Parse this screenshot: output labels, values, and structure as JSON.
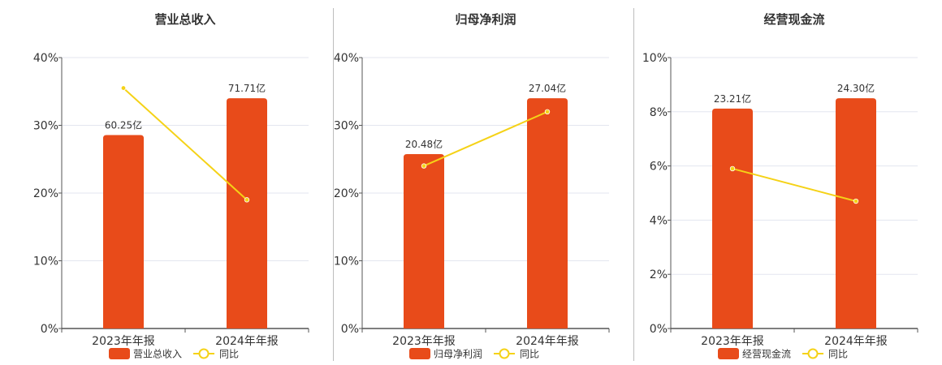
{
  "chart_data": [
    {
      "type": "bar",
      "title": "营业总收入",
      "categories": [
        "2023年年报",
        "2024年年报"
      ],
      "bar_series": {
        "name": "营业总收入",
        "values": [
          60.25,
          71.71
        ],
        "labels": [
          "60.25亿",
          "71.71亿"
        ]
      },
      "line_series": {
        "name": "同比",
        "values": [
          35.5,
          19.0
        ]
      },
      "y_ticks": [
        "0%",
        "10%",
        "20%",
        "30%",
        "40%"
      ],
      "ylim": [
        0,
        40
      ],
      "bar_max": 71.71,
      "bar_max_pct": 34
    },
    {
      "type": "bar",
      "title": "归母净利润",
      "categories": [
        "2023年年报",
        "2024年年报"
      ],
      "bar_series": {
        "name": "归母净利润",
        "values": [
          20.48,
          27.04
        ],
        "labels": [
          "20.48亿",
          "27.04亿"
        ]
      },
      "line_series": {
        "name": "同比",
        "values": [
          24.0,
          32.0
        ]
      },
      "y_ticks": [
        "0%",
        "10%",
        "20%",
        "30%",
        "40%"
      ],
      "ylim": [
        0,
        40
      ],
      "bar_max": 27.04,
      "bar_max_pct": 34
    },
    {
      "type": "bar",
      "title": "经营现金流",
      "categories": [
        "2023年年报",
        "2024年年报"
      ],
      "bar_series": {
        "name": "经营现金流",
        "values": [
          23.21,
          24.3
        ],
        "labels": [
          "23.21亿",
          "24.30亿"
        ]
      },
      "line_series": {
        "name": "同比",
        "values": [
          5.9,
          4.7
        ]
      },
      "y_ticks": [
        "0%",
        "2%",
        "4%",
        "6%",
        "8%",
        "10%"
      ],
      "ylim": [
        0,
        10
      ],
      "bar_max": 24.3,
      "bar_max_pct": 8.5
    }
  ],
  "colors": {
    "bar": "#e84b1a",
    "line": "#f5d217",
    "grid": "#e3e6ef",
    "axis": "#555555"
  }
}
